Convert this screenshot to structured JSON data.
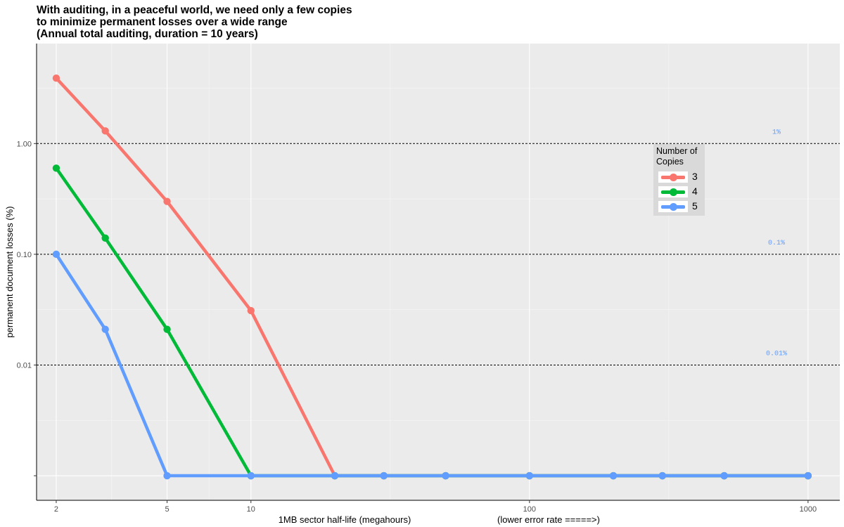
{
  "title_lines": [
    "With auditing, in a peaceful world, we need only a few copies",
    "to minimize permanent losses over a wide range",
    "(Annual total auditing, duration = 10 years)"
  ],
  "chart_data": {
    "type": "line",
    "title": "With auditing, in a peaceful world, we need only a few copies to minimize permanent losses over a wide range (Annual total auditing, duration = 10 years)",
    "xlabel": "1MB sector half-life (megahours)",
    "xlabel_secondary": "(lower error rate =====>)",
    "ylabel": "permanent document losses (%)",
    "x_scale": "log",
    "y_scale": "log",
    "xlim": [
      1.7,
      1300
    ],
    "ylim": [
      0.0006,
      8
    ],
    "x_ticks": [
      2,
      5,
      10,
      100,
      1000
    ],
    "x_tick_labels": [
      "2",
      "5",
      "10",
      "100",
      "1000"
    ],
    "y_ticks": [
      0.01,
      0.1,
      1.0
    ],
    "y_tick_labels": [
      "0.01",
      "0.10",
      "1.00"
    ],
    "grid": true,
    "x": [
      2,
      3,
      5,
      10,
      20,
      30,
      50,
      100,
      200,
      300,
      500,
      1000
    ],
    "series": [
      {
        "name": "3",
        "color": "#F8766D",
        "values": [
          3.9,
          1.3,
          0.3,
          0.031,
          0.001,
          0.001,
          0.001,
          0.001,
          0.001,
          0.001,
          0.001,
          0.001
        ]
      },
      {
        "name": "4",
        "color": "#00BA38",
        "values": [
          0.6,
          0.14,
          0.021,
          0.001,
          0.001,
          0.001,
          0.001,
          0.001,
          0.001,
          0.001,
          0.001,
          0.001
        ]
      },
      {
        "name": "5",
        "color": "#619CFF",
        "values": [
          0.1,
          0.021,
          0.001,
          0.001,
          0.001,
          0.001,
          0.001,
          0.001,
          0.001,
          0.001,
          0.001,
          0.001
        ]
      }
    ],
    "reference_lines": [
      {
        "y": 1.0,
        "label": "1%"
      },
      {
        "y": 0.1,
        "label": "0.1%"
      },
      {
        "y": 0.01,
        "label": "0.01%"
      }
    ],
    "legend": {
      "title_lines": [
        "Number of",
        "Copies"
      ],
      "placement": "right"
    }
  }
}
